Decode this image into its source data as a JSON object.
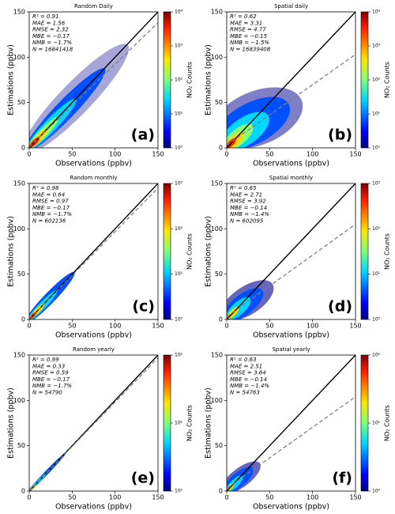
{
  "chart_data": [
    {
      "type": "density",
      "title": "Random Daily",
      "x_label": "Observations (ppbv)",
      "y_label": "Estimations (ppbv)",
      "panel_label": "(a)",
      "stats": [
        "R² = 0.91",
        "MAE = 1.56",
        "RMSE = 2.32",
        "MBE = −0.17",
        "NMB = −1.7%",
        "N = 16841418"
      ],
      "xlim": [
        0,
        150
      ],
      "ylim": [
        0,
        150
      ],
      "xticks": [
        0,
        50,
        100,
        150
      ],
      "yticks": [
        0,
        50,
        100,
        150
      ],
      "lines": [
        {
          "style": "solid",
          "color": "#000000",
          "x": [
            0,
            150
          ],
          "y": [
            0,
            150
          ]
        },
        {
          "style": "dashed",
          "color": "#808080",
          "x": [
            0,
            150
          ],
          "y": [
            1,
            138
          ]
        }
      ],
      "colorbar": {
        "label": "NO₂ Counts",
        "log": true,
        "lim": [
          1,
          10000
        ],
        "ticks": [
          {
            "value": 1,
            "label": "10⁰"
          },
          {
            "value": 10,
            "label": "10¹"
          },
          {
            "value": 100,
            "label": "10²"
          },
          {
            "value": 1000,
            "label": "10³"
          },
          {
            "value": 10000,
            "label": "10⁴"
          }
        ]
      }
    },
    {
      "type": "density",
      "title": "Spatial daily",
      "x_label": "Observations (ppbv)",
      "y_label": "Estimations (ppbv)",
      "panel_label": "(b)",
      "stats": [
        "R² = 0.62",
        "MAE = 3.31",
        "RMSE = 4.77",
        "MBE = −0.15",
        "NMB = −1.5%",
        "N = 16839408"
      ],
      "xlim": [
        0,
        150
      ],
      "ylim": [
        0,
        150
      ],
      "xticks": [
        0,
        50,
        100,
        150
      ],
      "yticks": [
        0,
        50,
        100,
        150
      ],
      "lines": [
        {
          "style": "solid",
          "color": "#000000",
          "x": [
            0,
            150
          ],
          "y": [
            0,
            150
          ]
        },
        {
          "style": "dashed",
          "color": "#808080",
          "x": [
            0,
            150
          ],
          "y": [
            3,
            103
          ]
        }
      ],
      "colorbar": {
        "label": "NO₂ Counts",
        "log": true,
        "lim": [
          1,
          10000
        ],
        "ticks": [
          {
            "value": 1,
            "label": "10⁰"
          },
          {
            "value": 10,
            "label": "10¹"
          },
          {
            "value": 100,
            "label": "10²"
          },
          {
            "value": 1000,
            "label": "10³"
          },
          {
            "value": 10000,
            "label": "10⁴"
          }
        ]
      }
    },
    {
      "type": "density",
      "title": "Random monthly",
      "x_label": "Observations (ppbv)",
      "y_label": "Estimations (ppbv)",
      "panel_label": "(c)",
      "stats": [
        "R² = 0.98",
        "MAE = 0.64",
        "RMSE = 0.97",
        "MBE = −0.17",
        "NMB = −1.7%",
        "N = 602136"
      ],
      "xlim": [
        0,
        150
      ],
      "ylim": [
        0,
        150
      ],
      "xticks": [
        0,
        50,
        100,
        150
      ],
      "yticks": [
        0,
        50,
        100,
        150
      ],
      "lines": [
        {
          "style": "solid",
          "color": "#000000",
          "x": [
            0,
            150
          ],
          "y": [
            0,
            150
          ]
        },
        {
          "style": "dashed",
          "color": "#808080",
          "x": [
            0,
            150
          ],
          "y": [
            0.5,
            145
          ]
        }
      ],
      "colorbar": {
        "label": "NO₂ Counts",
        "log": true,
        "lim": [
          1,
          1000
        ],
        "ticks": [
          {
            "value": 1,
            "label": "10⁰"
          },
          {
            "value": 10,
            "label": "10¹"
          },
          {
            "value": 100,
            "label": "10²"
          },
          {
            "value": 1000,
            "label": "10³"
          }
        ]
      }
    },
    {
      "type": "density",
      "title": "Spatial monthly",
      "x_label": "Observations (ppbv)",
      "y_label": "Estimations (ppbv)",
      "panel_label": "(d)",
      "stats": [
        "R² = 0.65",
        "MAE = 2.71",
        "RMSE = 3.92",
        "MBE = −0.14",
        "NMB = −1.4%",
        "N = 602095"
      ],
      "xlim": [
        0,
        150
      ],
      "ylim": [
        0,
        150
      ],
      "xticks": [
        0,
        50,
        100,
        150
      ],
      "yticks": [
        0,
        50,
        100,
        150
      ],
      "lines": [
        {
          "style": "solid",
          "color": "#000000",
          "x": [
            0,
            150
          ],
          "y": [
            0,
            150
          ]
        },
        {
          "style": "dashed",
          "color": "#808080",
          "x": [
            0,
            150
          ],
          "y": [
            3,
            105
          ]
        }
      ],
      "colorbar": {
        "label": "NO₂ Counts",
        "log": true,
        "lim": [
          1,
          1000
        ],
        "ticks": [
          {
            "value": 1,
            "label": "10⁰"
          },
          {
            "value": 10,
            "label": "10¹"
          },
          {
            "value": 100,
            "label": "10²"
          },
          {
            "value": 1000,
            "label": "10³"
          }
        ]
      }
    },
    {
      "type": "density",
      "title": "Random yearly",
      "x_label": "Observations (ppbv)",
      "y_label": "Estimations (ppbv)",
      "panel_label": "(e)",
      "stats": [
        "R² = 0.99",
        "MAE = 0.33",
        "RMSE = 0.59",
        "MBE = −0.17",
        "NMB = −1.7%",
        "N = 54790"
      ],
      "xlim": [
        0,
        150
      ],
      "ylim": [
        0,
        150
      ],
      "xticks": [
        0,
        50,
        100,
        150
      ],
      "yticks": [
        0,
        50,
        100,
        150
      ],
      "lines": [
        {
          "style": "solid",
          "color": "#000000",
          "x": [
            0,
            150
          ],
          "y": [
            0,
            150
          ]
        },
        {
          "style": "dashed",
          "color": "#808080",
          "x": [
            0,
            150
          ],
          "y": [
            0.3,
            147
          ]
        }
      ],
      "colorbar": {
        "label": "NO₂ Counts",
        "log": true,
        "lim": [
          1,
          100
        ],
        "ticks": [
          {
            "value": 1,
            "label": "10⁰"
          },
          {
            "value": 10,
            "label": "10¹"
          },
          {
            "value": 100,
            "label": "10²"
          }
        ]
      }
    },
    {
      "type": "density",
      "title": "Spatial yearly",
      "x_label": "Observations (ppbv)",
      "y_label": "Estimations (ppbv)",
      "panel_label": "(f)",
      "stats": [
        "R² = 0.63",
        "MAE = 2.51",
        "RMSE = 3.64",
        "MBE = −0.14",
        "NMB = −1.4%",
        "N = 54763"
      ],
      "xlim": [
        0,
        150
      ],
      "ylim": [
        0,
        150
      ],
      "xticks": [
        0,
        50,
        100,
        150
      ],
      "yticks": [
        0,
        50,
        100,
        150
      ],
      "lines": [
        {
          "style": "solid",
          "color": "#000000",
          "x": [
            0,
            150
          ],
          "y": [
            0,
            150
          ]
        },
        {
          "style": "dashed",
          "color": "#808080",
          "x": [
            0,
            150
          ],
          "y": [
            3,
            104
          ]
        }
      ],
      "colorbar": {
        "label": "NO₂ Counts",
        "log": true,
        "lim": [
          1,
          100
        ],
        "ticks": [
          {
            "value": 1,
            "label": "10⁰"
          },
          {
            "value": 10,
            "label": "10¹"
          },
          {
            "value": 100,
            "label": "10²"
          }
        ]
      }
    }
  ]
}
